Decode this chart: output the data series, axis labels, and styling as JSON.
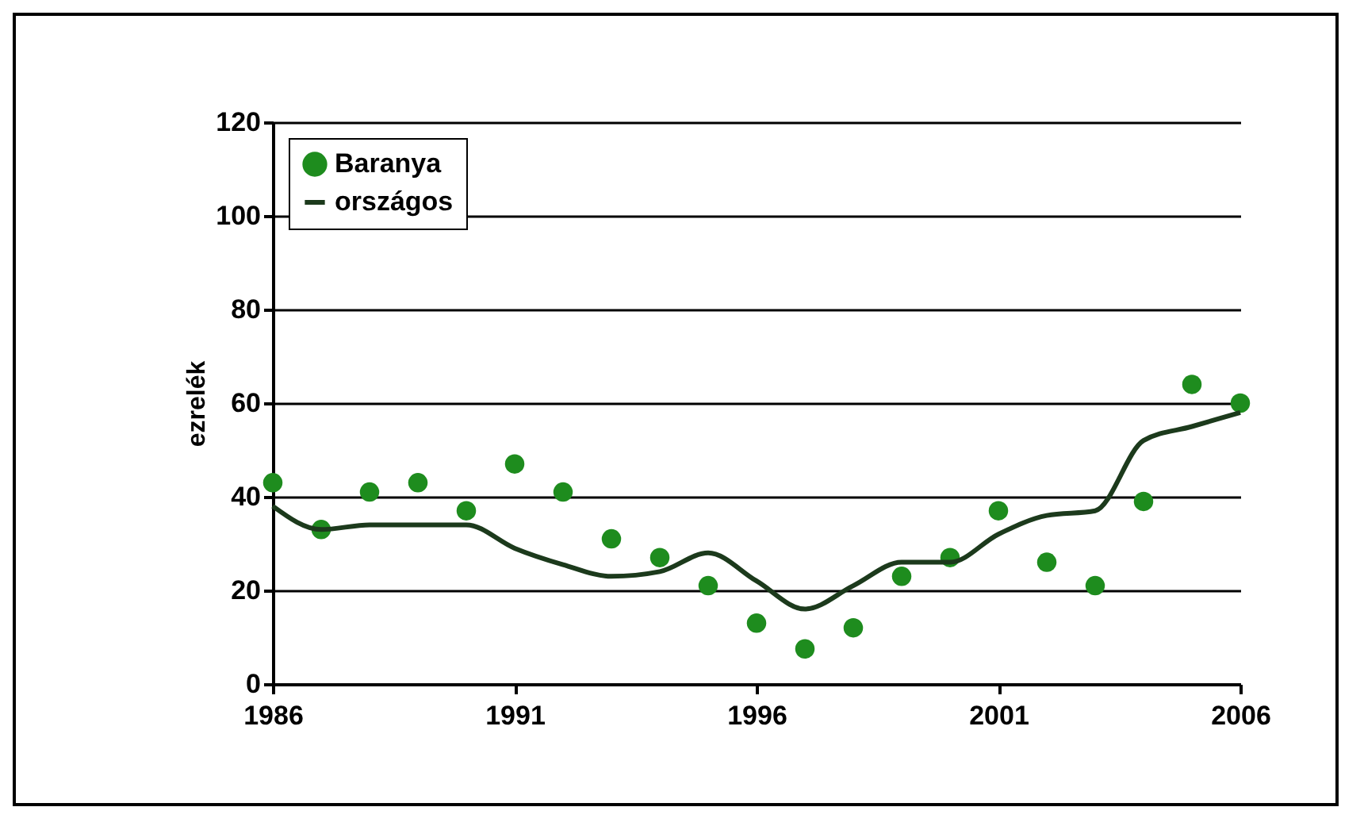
{
  "chart_data": {
    "type": "line",
    "ylabel": "ezrelék",
    "x": [
      1986,
      1987,
      1988,
      1989,
      1990,
      1991,
      1992,
      1993,
      1994,
      1995,
      1996,
      1997,
      1998,
      1999,
      2000,
      2001,
      2002,
      2003,
      2004,
      2005,
      2006
    ],
    "series": [
      {
        "name": "Baranya",
        "type": "scatter",
        "marker": "circle",
        "color": "#1e8c1e",
        "values": [
          43,
          33,
          41,
          43,
          37,
          47,
          41,
          31,
          27,
          21,
          13,
          7.5,
          12,
          23,
          27,
          37,
          26,
          21,
          39,
          64,
          60
        ]
      },
      {
        "name": "országos",
        "marker": "none",
        "color": "#1c3a1c",
        "values": [
          38,
          33,
          34,
          34,
          34,
          29,
          25.5,
          23,
          24,
          28,
          22,
          16,
          21,
          26,
          26,
          32,
          36,
          37,
          52,
          55,
          58
        ]
      }
    ],
    "xlim": [
      1986,
      2006
    ],
    "xticks": [
      1986,
      1991,
      1996,
      2001,
      2006
    ],
    "ylim": [
      0,
      120
    ],
    "yticks": [
      0,
      20,
      40,
      60,
      80,
      100,
      120
    ],
    "grid": "y",
    "legend": "top left"
  }
}
